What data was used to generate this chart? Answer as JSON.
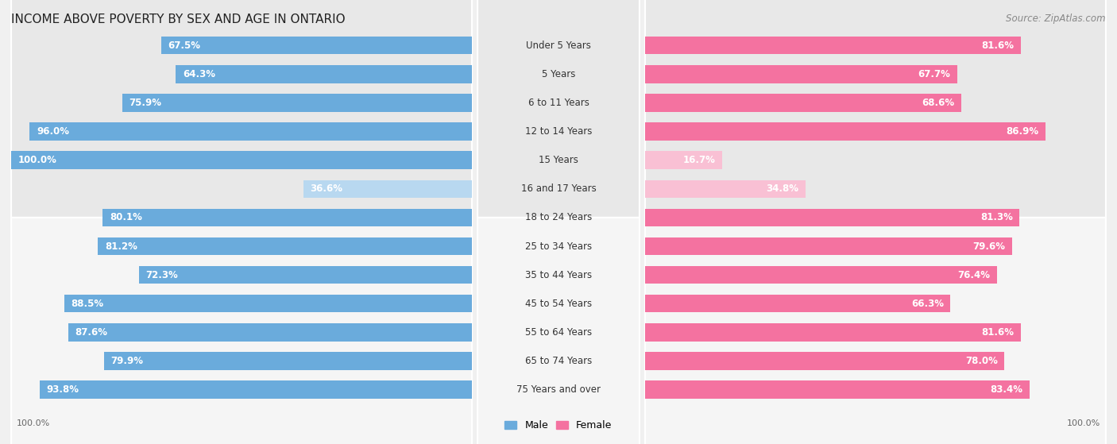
{
  "title": "INCOME ABOVE POVERTY BY SEX AND AGE IN ONTARIO",
  "source": "Source: ZipAtlas.com",
  "categories": [
    "Under 5 Years",
    "5 Years",
    "6 to 11 Years",
    "12 to 14 Years",
    "15 Years",
    "16 and 17 Years",
    "18 to 24 Years",
    "25 to 34 Years",
    "35 to 44 Years",
    "45 to 54 Years",
    "55 to 64 Years",
    "65 to 74 Years",
    "75 Years and over"
  ],
  "male_values": [
    67.5,
    64.3,
    75.9,
    96.0,
    100.0,
    36.6,
    80.1,
    81.2,
    72.3,
    88.5,
    87.6,
    79.9,
    93.8
  ],
  "female_values": [
    81.6,
    67.7,
    68.6,
    86.9,
    16.7,
    34.8,
    81.3,
    79.6,
    76.4,
    66.3,
    81.6,
    78.0,
    83.4
  ],
  "male_color": "#6aabdc",
  "female_color": "#f472a0",
  "male_light_color": "#b8d8f0",
  "female_light_color": "#f9c0d4",
  "male_label": "Male",
  "female_label": "Female",
  "bg_color": "#f0f0f0",
  "row_color_odd": "#e8e8e8",
  "row_color_even": "#f5f5f5",
  "title_fontsize": 11,
  "label_fontsize": 8.5,
  "bar_height": 0.62,
  "legend_fontsize": 9,
  "source_fontsize": 8.5,
  "axis_label_fontsize": 8,
  "xlim_male": [
    0,
    100
  ],
  "xlim_female": [
    0,
    100
  ]
}
